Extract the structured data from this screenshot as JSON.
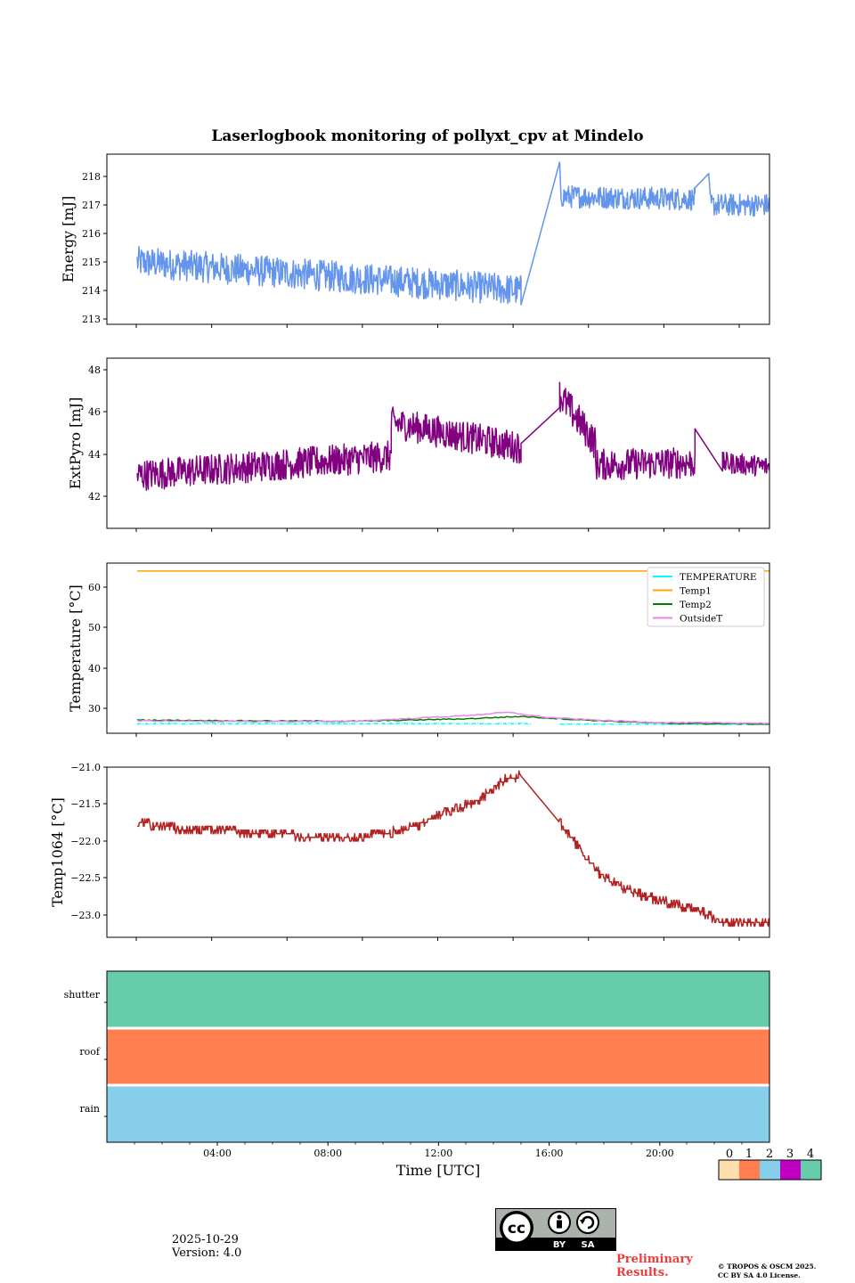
{
  "title": "Laserlogbook monitoring of pollyxt_cpv at Mindelo",
  "footer": {
    "date": "2025-10-29",
    "version": "Version: 4.0",
    "preliminary_line1": "Preliminary",
    "preliminary_line2": "Results.",
    "copyright_line1": "© TROPOS & OSCM 2025.",
    "copyright_line2": "CC BY SA 4.0 License.",
    "license_badge": {
      "cc": "cc",
      "by": "BY",
      "sa": "SA"
    }
  },
  "colors": {
    "energy": "#6495ed",
    "extpyro": "#800080",
    "temperature": "#00ffff",
    "temp1": "#ffa500",
    "temp2": "#008000",
    "outsidet": "#ee82ee",
    "temp1064": "#b22222",
    "status_0": "#ffdead",
    "status_1": "#ff7f50",
    "status_2": "#87ceeb",
    "status_3": "#c000c0",
    "status_4": "#66cdaa"
  },
  "chart_data": [
    {
      "type": "line",
      "name": "energy",
      "ylabel": "Energy [mJ]",
      "ylim": [
        212.9,
        218.8
      ],
      "yticks": [
        "213",
        "214",
        "215",
        "216",
        "217",
        "218"
      ],
      "xlim": [
        0,
        24
      ],
      "series": [
        {
          "name": "Energy",
          "color_key": "energy",
          "segments": [
            {
              "from": 1.1,
              "to": 15.0,
              "start": 215.0,
              "end": 214.0,
              "noise": 0.55
            },
            {
              "from": 15.0,
              "to": 16.4,
              "start": 213.5,
              "end": 218.5,
              "noise": 0.0
            },
            {
              "from": 16.45,
              "to": 21.3,
              "start": 217.3,
              "end": 217.2,
              "noise": 0.4
            },
            {
              "from": 21.3,
              "to": 21.8,
              "start": 217.6,
              "end": 218.1,
              "noise": 0.0
            },
            {
              "from": 21.85,
              "to": 24.0,
              "start": 217.0,
              "end": 217.0,
              "noise": 0.4
            }
          ]
        }
      ]
    },
    {
      "type": "line",
      "name": "extpyro",
      "ylabel": "ExtPyro [mJ]",
      "ylim": [
        40.8,
        48.4
      ],
      "yticks": [
        "42",
        "44",
        "46",
        "48"
      ],
      "xlim": [
        0,
        24
      ],
      "series": [
        {
          "name": "ExtPyro",
          "color_key": "extpyro",
          "segments": [
            {
              "from": 1.1,
              "to": 10.3,
              "start": 43.0,
              "end": 43.9,
              "noise": 0.75
            },
            {
              "from": 10.3,
              "to": 15.0,
              "start": 45.5,
              "end": 44.3,
              "noise": 0.75
            },
            {
              "from": 15.0,
              "to": 16.4,
              "start": 44.5,
              "end": 46.2,
              "noise": 0.0
            },
            {
              "from": 16.4,
              "to": 17.7,
              "start": 46.8,
              "end": 44.5,
              "noise": 0.8
            },
            {
              "from": 17.7,
              "to": 21.3,
              "start": 43.5,
              "end": 43.6,
              "noise": 0.75
            },
            {
              "from": 21.3,
              "to": 22.3,
              "start": 45.2,
              "end": 43.2,
              "noise": 0.0
            },
            {
              "from": 22.3,
              "to": 24.0,
              "start": 43.6,
              "end": 43.4,
              "noise": 0.5
            }
          ]
        }
      ]
    },
    {
      "type": "line",
      "name": "temperature",
      "ylabel": "Temperature [°C]",
      "ylim": [
        23.7,
        65.9
      ],
      "yticks": [
        "30",
        "40",
        "50",
        "60"
      ],
      "xlim": [
        0,
        24
      ],
      "legend": {
        "placement": "top-right",
        "entries": [
          "TEMPERATURE",
          "Temp1",
          "Temp2",
          "OutsideT"
        ]
      },
      "series": [
        {
          "name": "TEMPERATURE",
          "color_key": "temperature",
          "dashed": true,
          "segments": [
            {
              "from": 1.1,
              "to": 15.4,
              "start": 26.2,
              "end": 26.2,
              "noise": 0.15
            },
            {
              "from": 16.4,
              "to": 24.0,
              "start": 26.1,
              "end": 26.0,
              "noise": 0.1
            }
          ]
        },
        {
          "name": "Temp1",
          "color_key": "temp1",
          "segments": [
            {
              "from": 1.1,
              "to": 24.0,
              "start": 64.0,
              "end": 64.0,
              "noise": 0.0
            }
          ]
        },
        {
          "name": "Temp2",
          "color_key": "temp2",
          "points": [
            [
              1.1,
              27.1
            ],
            [
              5,
              26.9
            ],
            [
              9,
              26.8
            ],
            [
              13,
              27.4
            ],
            [
              15,
              28.0
            ],
            [
              17,
              27.2
            ],
            [
              20,
              26.3
            ],
            [
              24,
              26.1
            ]
          ]
        },
        {
          "name": "OutsideT",
          "color_key": "outsidet",
          "points": [
            [
              1.1,
              26.9
            ],
            [
              5,
              26.7
            ],
            [
              9,
              26.8
            ],
            [
              11,
              27.5
            ],
            [
              13,
              28.2
            ],
            [
              14.5,
              29.0
            ],
            [
              16,
              27.7
            ],
            [
              18,
              27.0
            ],
            [
              20,
              26.5
            ],
            [
              24,
              26.3
            ]
          ]
        }
      ]
    },
    {
      "type": "line",
      "name": "temp1064",
      "ylabel": "Temp1064 [°C]",
      "ylim": [
        -23.3,
        -21.0
      ],
      "yticks": [
        "−21.0",
        "−21.5",
        "−22.0",
        "−22.5",
        "−23.0"
      ],
      "xlim": [
        0,
        24
      ],
      "series": [
        {
          "name": "Temp1064",
          "color_key": "temp1064",
          "step": 0.05,
          "points": [
            [
              1.1,
              -21.75
            ],
            [
              2.0,
              -21.8
            ],
            [
              3.0,
              -21.85
            ],
            [
              5.0,
              -21.88
            ],
            [
              7.0,
              -21.93
            ],
            [
              9.0,
              -21.95
            ],
            [
              10.3,
              -21.88
            ],
            [
              11.2,
              -21.8
            ],
            [
              12.0,
              -21.65
            ],
            [
              12.8,
              -21.55
            ],
            [
              13.5,
              -21.45
            ],
            [
              14.0,
              -21.28
            ],
            [
              14.5,
              -21.15
            ],
            [
              15.0,
              -21.12
            ],
            [
              16.4,
              -21.75
            ],
            [
              16.8,
              -21.95
            ],
            [
              17.3,
              -22.2
            ],
            [
              17.7,
              -22.4
            ],
            [
              18.5,
              -22.6
            ],
            [
              19.5,
              -22.75
            ],
            [
              20.5,
              -22.85
            ],
            [
              21.5,
              -22.95
            ],
            [
              22.2,
              -23.08
            ],
            [
              22.6,
              -23.1
            ],
            [
              24.0,
              -23.12
            ]
          ]
        }
      ]
    },
    {
      "type": "heatmap",
      "name": "status",
      "xlabel": "Time [UTC]",
      "xlim": [
        0,
        24
      ],
      "xticks": [
        "04:00",
        "08:00",
        "12:00",
        "16:00",
        "20:00"
      ],
      "rows": [
        {
          "label": "shutter",
          "status": 4
        },
        {
          "label": "roof",
          "status": 1
        },
        {
          "label": "rain",
          "status": 2
        }
      ],
      "colorbar": {
        "ticks": [
          "0",
          "1",
          "2",
          "3",
          "4"
        ]
      }
    }
  ]
}
